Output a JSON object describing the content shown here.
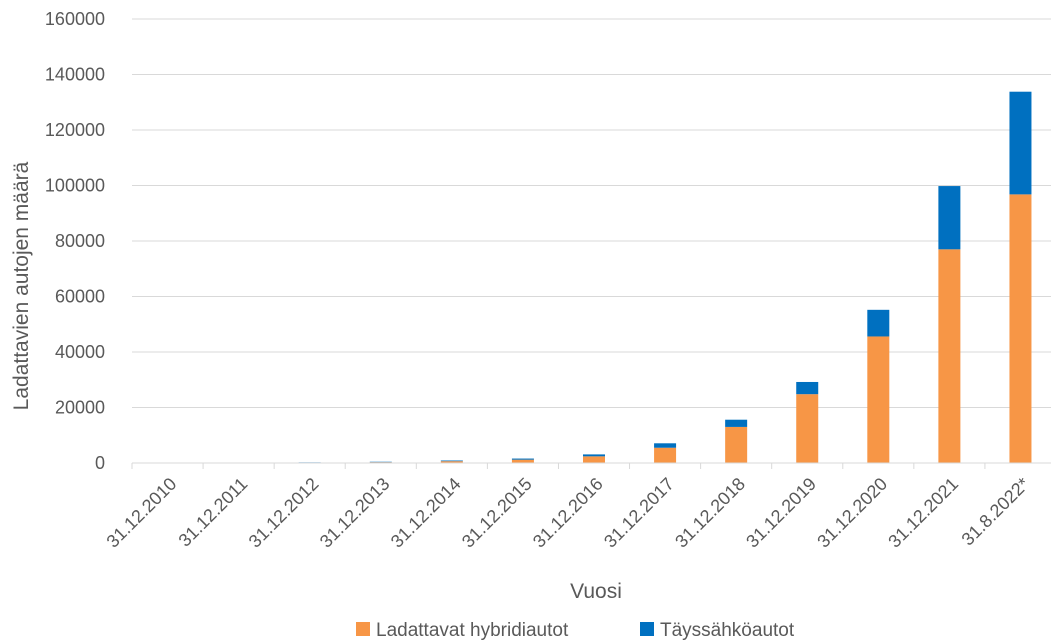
{
  "chart_data": {
    "type": "bar",
    "stacked": true,
    "categories": [
      "31.12.2010",
      "31.12.2011",
      "31.12.2012",
      "31.12.2013",
      "31.12.2014",
      "31.12.2015",
      "31.12.2016",
      "31.12.2017",
      "31.12.2018",
      "31.12.2019",
      "31.12.2020",
      "31.12.2021",
      "31.8.2022*"
    ],
    "series": [
      {
        "name": "Ladattavat hybridiautot",
        "color": "#F79646",
        "values": [
          10,
          40,
          150,
          300,
          650,
          1200,
          2400,
          5500,
          13000,
          24800,
          45600,
          77000,
          96800
        ]
      },
      {
        "name": "Täyssähköautot",
        "color": "#0070C0",
        "values": [
          5,
          30,
          80,
          150,
          250,
          400,
          700,
          1600,
          2600,
          4400,
          9600,
          22800,
          37000
        ]
      }
    ],
    "xlabel": "Vuosi",
    "ylabel": "Ladattavien autojen määrä",
    "ylim": [
      0,
      160000
    ],
    "yticks": [
      0,
      20000,
      40000,
      60000,
      80000,
      100000,
      120000,
      140000,
      160000
    ],
    "grid": true,
    "legend_position": "bottom"
  }
}
